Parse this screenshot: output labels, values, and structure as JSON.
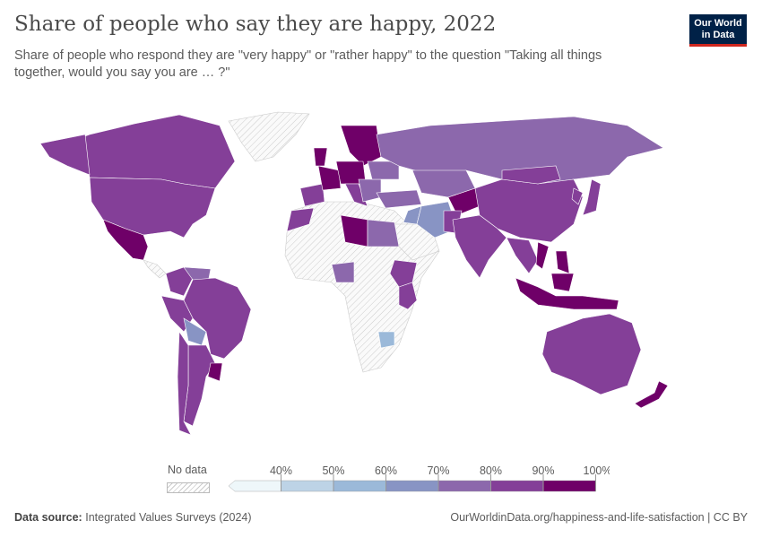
{
  "header": {
    "title": "Share of people who say they are happy, 2022",
    "subtitle": "Share of people who respond they are \"very happy\" or \"rather happy\" to the question \"Taking all things together, would you say you are … ?\"",
    "logo": "Our World in Data"
  },
  "legend": {
    "no_data_label": "No data",
    "ticks": [
      "40%",
      "50%",
      "60%",
      "70%",
      "80%",
      "90%",
      "100%"
    ],
    "bins": [
      {
        "range": "<40%",
        "color": "#eef7fa"
      },
      {
        "range": "40-50%",
        "color": "#bdd3e6"
      },
      {
        "range": "50-60%",
        "color": "#9bb9d9"
      },
      {
        "range": "60-70%",
        "color": "#8894c4"
      },
      {
        "range": "70-80%",
        "color": "#8c68ac"
      },
      {
        "range": "80-90%",
        "color": "#843f98"
      },
      {
        "range": "90-100%",
        "color": "#6f0068"
      }
    ],
    "no_data_color": "#f2f2f2"
  },
  "chart_data": {
    "type": "choropleth",
    "title": "Share of people who say they are happy, 2022",
    "unit": "%",
    "region_bin_index": {
      "canada": 5,
      "usa": 5,
      "mexico": 6,
      "colombia": 5,
      "venezuela": 4,
      "peru": 5,
      "brazil": 5,
      "bolivia": 3,
      "argentina": 5,
      "chile": 5,
      "uruguay": 6,
      "morocco": 5,
      "libya": 6,
      "egypt": 4,
      "nigeria": 4,
      "ethiopia": 5,
      "kenya": 5,
      "zimbabwe": 2,
      "spain": 5,
      "france": 6,
      "uk": 6,
      "scandinavia": 6,
      "germany": 6,
      "italy": 5,
      "balkans": 4,
      "ukraine": 4,
      "russia": 4,
      "kazakhstan": 4,
      "turkey": 4,
      "iraq": 3,
      "iran": 3,
      "central-asia": 6,
      "pakistan": 5,
      "china": 5,
      "mongolia": 5,
      "india": 5,
      "myanmar": 5,
      "vietnam": 6,
      "korea": 5,
      "japan": 5,
      "philippines": 6,
      "borneo": 6,
      "indonesia": 6,
      "australia": 5,
      "new-zealand": 6
    }
  },
  "footer": {
    "source_label": "Data source:",
    "source": "Integrated Values Surveys (2024)",
    "link": "OurWorldinData.org/happiness-and-life-satisfaction | CC BY"
  }
}
